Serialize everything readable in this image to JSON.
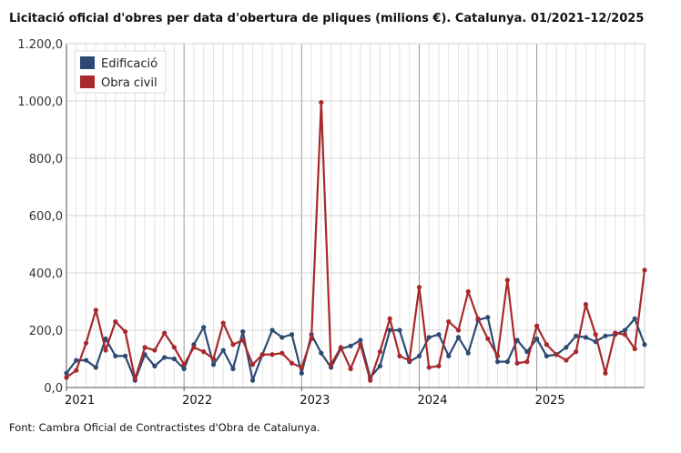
{
  "chart_data": {
    "type": "line",
    "title": "Licitació oficial d'obres per data d'obertura de pliques (milions €). Catalunya. 01/2021–12/2025",
    "xlabel": "",
    "ylabel": "",
    "ylim": [
      0,
      1200
    ],
    "y_ticks": [
      "0,0",
      "200,0",
      "400,0",
      "600,0",
      "800,0",
      "1.000,0",
      "1.200,0"
    ],
    "y_tick_values": [
      0,
      200,
      400,
      600,
      800,
      1000,
      1200
    ],
    "x_tick_labels": [
      "2021",
      "2022",
      "2023",
      "2024",
      "2025"
    ],
    "x_tick_months": [
      0,
      12,
      24,
      36,
      48
    ],
    "months": 60,
    "grid": true,
    "legend_position": "top-left",
    "series": [
      {
        "name": "Edificació",
        "color": "#2c4a73",
        "values": [
          50,
          95,
          95,
          70,
          170,
          110,
          110,
          25,
          115,
          75,
          105,
          100,
          65,
          150,
          210,
          80,
          130,
          65,
          195,
          25,
          115,
          200,
          175,
          185,
          50,
          185,
          120,
          70,
          135,
          145,
          165,
          35,
          75,
          200,
          200,
          90,
          110,
          175,
          185,
          110,
          175,
          120,
          235,
          245,
          90,
          90,
          165,
          125,
          170,
          110,
          115,
          140,
          180,
          175,
          160,
          180,
          185,
          200,
          240,
          150
        ]
      },
      {
        "name": "Obra civil",
        "color": "#a8292b",
        "values": [
          35,
          60,
          155,
          270,
          130,
          230,
          195,
          30,
          140,
          130,
          190,
          140,
          80,
          140,
          125,
          100,
          225,
          150,
          165,
          80,
          115,
          115,
          120,
          85,
          70,
          170,
          995,
          80,
          140,
          65,
          150,
          25,
          125,
          240,
          110,
          95,
          350,
          70,
          75,
          230,
          200,
          335,
          240,
          170,
          110,
          375,
          85,
          90,
          215,
          150,
          115,
          95,
          125,
          290,
          185,
          50,
          190,
          185,
          135,
          410
        ]
      }
    ]
  },
  "source_text": "Font: Cambra Oficial de Contractistes d'Obra de Catalunya."
}
